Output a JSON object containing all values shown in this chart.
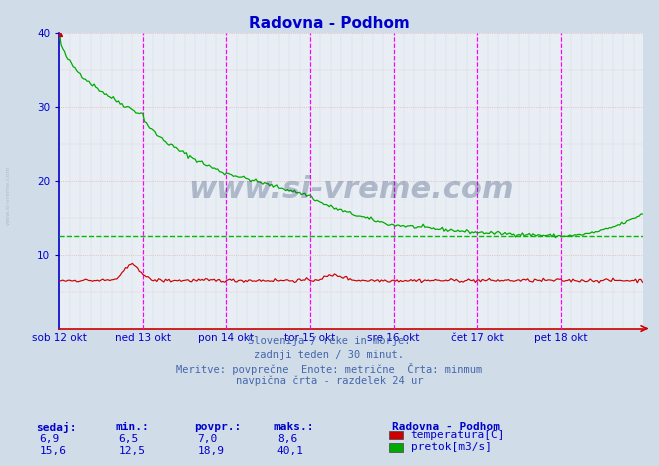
{
  "title": "Radovna - Podhom",
  "title_color": "#0000cc",
  "bg_color": "#d0dce8",
  "plot_bg_color": "#e8eef4",
  "grid_h_color": "#e8a0a0",
  "grid_v_color": "#c8c8d8",
  "ylim": [
    0,
    40
  ],
  "yticks": [
    10,
    20,
    30,
    40
  ],
  "n_points": 336,
  "day_labels": [
    "sob 12 okt",
    "ned 13 okt",
    "pon 14 okt",
    "tor 15 okt",
    "sre 16 okt",
    "čet 17 okt",
    "pet 18 okt"
  ],
  "day_tick_positions": [
    0,
    48,
    96,
    144,
    192,
    240,
    288
  ],
  "magenta_lines_x": [
    48,
    96,
    144,
    192,
    240,
    288
  ],
  "min_line_value": 12.5,
  "min_line_color": "#00bb00",
  "temp_color": "#cc0000",
  "flow_color": "#00aa00",
  "left_spine_color": "#0000cc",
  "bottom_spine_color": "#cc0000",
  "watermark_text": "www.si-vreme.com",
  "watermark_color": "#1a3060",
  "watermark_alpha": 0.28,
  "side_watermark_color": "#1a3060",
  "footer_lines": [
    "Slovenija / reke in morje.",
    "zadnji teden / 30 minut.",
    "Meritve: povprečne  Enote: metrične  Črta: minmum",
    "navpična črta - razdelek 24 ur"
  ],
  "footer_color": "#4466aa",
  "legend_title": "Radovna - Podhom",
  "legend_items": [
    {
      "label": "temperatura[C]",
      "color": "#cc0000"
    },
    {
      "label": "pretok[m3/s]",
      "color": "#00aa00"
    }
  ],
  "stat_headers": [
    "sedaj:",
    "min.:",
    "povpr.:",
    "maks.:"
  ],
  "stat_temp": [
    "6,9",
    "6,5",
    "7,0",
    "8,6"
  ],
  "stat_flow": [
    "15,6",
    "12,5",
    "18,9",
    "40,1"
  ],
  "stat_color": "#0000cc",
  "tick_color": "#0000cc",
  "tick_fontsize": 7.5
}
